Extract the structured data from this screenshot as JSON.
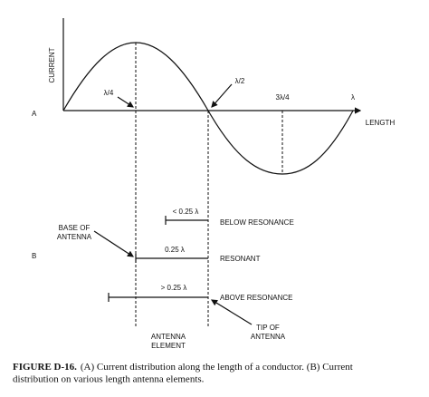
{
  "diagram": {
    "y_axis_label": "CURRENT",
    "x_axis_label": "LENGTH",
    "panel_a_label": "A",
    "panel_b_label": "B",
    "wave_labels": {
      "quarter": "λ/4",
      "half": "λ/2",
      "three_quarter": "3λ/4",
      "full": "λ"
    },
    "rows": [
      {
        "length_label": "< 0.25 λ",
        "state": "BELOW RESONANCE"
      },
      {
        "length_label": "0.25 λ",
        "state": "RESONANT"
      },
      {
        "length_label": "> 0.25 λ",
        "state": "ABOVE RESONANCE"
      }
    ],
    "callouts": {
      "base": [
        "BASE OF",
        "ANTENNA"
      ],
      "element": [
        "ANTENNA",
        "ELEMENT"
      ],
      "tip": [
        "TIP OF",
        "ANTENNA"
      ]
    }
  },
  "caption": {
    "figure": "FIGURE D-16.",
    "lines": [
      "(A) Current distribution along the length of a conductor. (B) Current",
      "distribution on various length antenna elements."
    ]
  }
}
